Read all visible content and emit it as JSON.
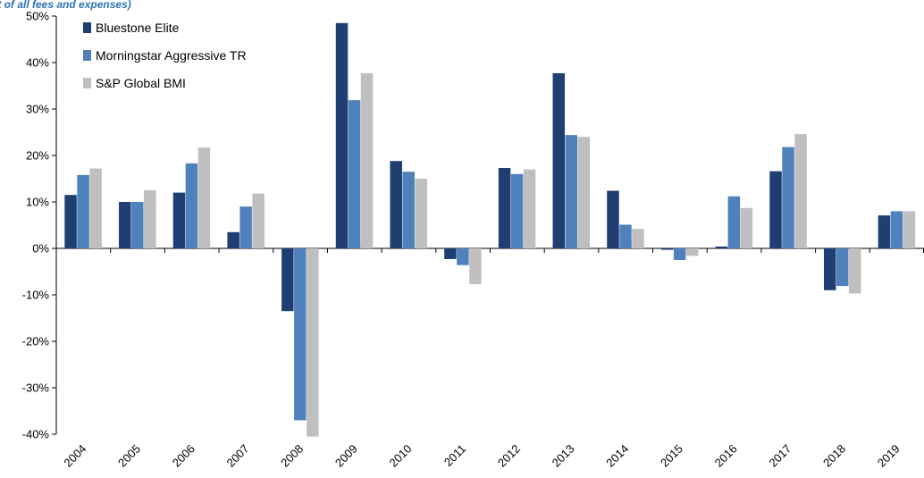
{
  "chart_data": {
    "type": "bar",
    "subtitle": "(Net of all fees and expenses)",
    "categories": [
      "2004",
      "2005",
      "2006",
      "2007",
      "2008",
      "2009",
      "2010",
      "2011",
      "2012",
      "2013",
      "2014",
      "2015",
      "2016",
      "2017",
      "2018",
      "2019"
    ],
    "series": [
      {
        "name": "Bluestone Elite",
        "color": "#1f3f72",
        "values": [
          11.5,
          10.0,
          12.0,
          3.5,
          -13.5,
          48.5,
          18.8,
          -2.3,
          17.3,
          37.7,
          12.4,
          -0.3,
          0.4,
          16.6,
          -9.0,
          7.1
        ]
      },
      {
        "name": "Morningstar Aggressive TR",
        "color": "#4f81bd",
        "values": [
          15.8,
          10.0,
          18.3,
          9.0,
          -37.0,
          31.9,
          16.5,
          -3.6,
          16.0,
          24.4,
          5.1,
          -2.5,
          11.2,
          21.8,
          -8.1,
          8.0
        ]
      },
      {
        "name": "S&P Global BMI",
        "color": "#bfbfbf",
        "values": [
          17.2,
          12.5,
          21.7,
          11.8,
          -40.5,
          37.7,
          15.0,
          -7.7,
          17.0,
          24.0,
          4.2,
          -1.6,
          8.7,
          24.6,
          -9.7,
          8.0
        ]
      }
    ],
    "ylim": [
      -40,
      50
    ],
    "yticks": [
      -40,
      -30,
      -20,
      -10,
      0,
      10,
      20,
      30,
      40,
      50
    ],
    "ytick_suffix": "%",
    "legend": "top-left",
    "grid": false
  }
}
